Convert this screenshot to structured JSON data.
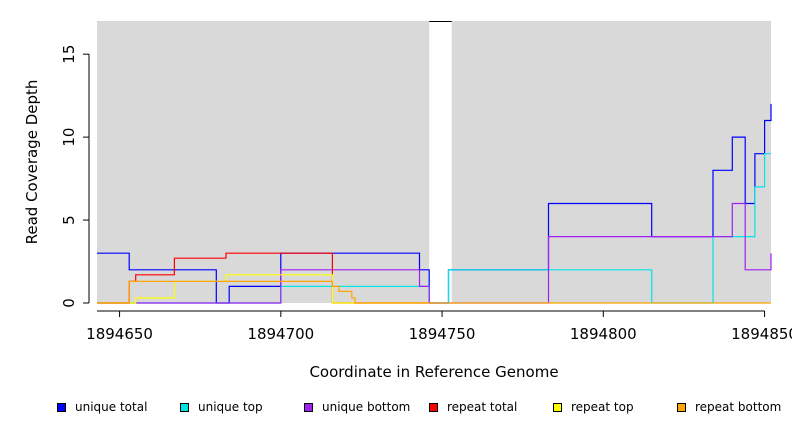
{
  "chart_data": {
    "type": "line",
    "xlabel": "Coordinate in Reference Genome",
    "ylabel": "Read Coverage Depth",
    "xlim": [
      1894643,
      1894852
    ],
    "ylim": [
      0,
      17
    ],
    "x_ticks": [
      1894650,
      1894700,
      1894750,
      1894800,
      1894850
    ],
    "y_ticks": [
      0,
      5,
      10,
      15
    ],
    "gap": [
      1894746,
      1894753
    ],
    "background": "#d9d9d9",
    "legend_position": "bottom",
    "series": [
      {
        "name": "unique total",
        "color": "#0000ff",
        "x": [
          1894643,
          1894650,
          1894650,
          1894653,
          1894653,
          1894680,
          1894680,
          1894684,
          1894684,
          1894700,
          1894700,
          1894743,
          1894743,
          1894746,
          1894746,
          1894752,
          1894752,
          1894783,
          1894783,
          1894815,
          1894815,
          1894834,
          1894834,
          1894840,
          1894840,
          1894844,
          1894844,
          1894847,
          1894847,
          1894850,
          1894850,
          1894852,
          1894852
        ],
        "y": [
          3,
          3,
          3,
          3,
          2,
          2,
          0,
          0,
          1,
          1,
          3,
          3,
          2,
          2,
          0,
          0,
          2,
          2,
          6,
          6,
          4,
          4,
          8,
          8,
          10,
          10,
          6,
          6,
          9,
          9,
          11,
          11,
          12
        ]
      },
      {
        "name": "unique top",
        "color": "#00e5e5",
        "x": [
          1894643,
          1894700,
          1894700,
          1894744,
          1894744,
          1894746,
          1894746,
          1894752,
          1894752,
          1894815,
          1894815,
          1894834,
          1894834,
          1894847,
          1894847,
          1894850,
          1894850,
          1894852
        ],
        "y": [
          0,
          0,
          1,
          1,
          1,
          1,
          0,
          0,
          2,
          2,
          0,
          0,
          4,
          4,
          7,
          7,
          9,
          9
        ]
      },
      {
        "name": "unique bottom",
        "color": "#a020f0",
        "x": [
          1894643,
          1894700,
          1894700,
          1894743,
          1894743,
          1894746,
          1894746,
          1894783,
          1894783,
          1894840,
          1894840,
          1894844,
          1894844,
          1894852,
          1894852
        ],
        "y": [
          0,
          0,
          2,
          2,
          1,
          1,
          0,
          0,
          4,
          4,
          6,
          6,
          2,
          2,
          3
        ]
      },
      {
        "name": "repeat total",
        "color": "#ff0000",
        "x": [
          1894643,
          1894653,
          1894653,
          1894655,
          1894655,
          1894667,
          1894667,
          1894683,
          1894683,
          1894716,
          1894716,
          1894746
        ],
        "y": [
          0,
          0,
          1.3,
          1.3,
          1.7,
          1.7,
          2.7,
          2.7,
          3,
          3,
          0,
          0
        ]
      },
      {
        "name": "repeat top",
        "color": "#ffff00",
        "x": [
          1894643,
          1894655,
          1894655,
          1894667,
          1894667,
          1894683,
          1894683,
          1894716,
          1894716,
          1894746
        ],
        "y": [
          0,
          0,
          0.3,
          0.3,
          1.3,
          1.3,
          1.7,
          1.7,
          0,
          0
        ]
      },
      {
        "name": "repeat bottom",
        "color": "#ffa500",
        "x": [
          1894643,
          1894653,
          1894653,
          1894716,
          1894716,
          1894718,
          1894718,
          1894722,
          1894722,
          1894723,
          1894723,
          1894852
        ],
        "y": [
          0,
          0,
          1.3,
          1.3,
          1,
          1,
          0.7,
          0.7,
          0.3,
          0.3,
          0,
          0
        ]
      }
    ]
  }
}
